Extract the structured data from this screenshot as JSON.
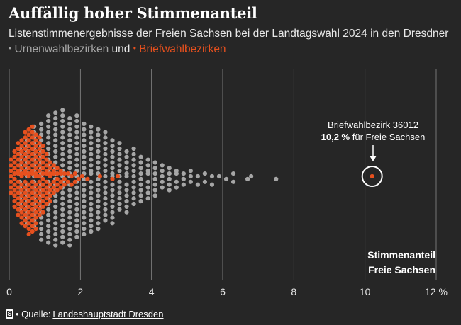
{
  "header": {
    "title": "Auffällig hoher Stimmenanteil",
    "subtitle_prefix": "Listenstimmenergebnisse der Freien Sachsen bei der Landtagswahl 2024 in den Dresdner",
    "legend_urnen": "Urnenwahlbezirken",
    "legend_und": "und",
    "legend_brief": "Briefwahlbezirken",
    "legend_bullet": "•"
  },
  "source": {
    "logo": "S",
    "label": "• Quelle:",
    "link_text": "Landeshauptstadt Dresden"
  },
  "colors": {
    "background": "#262626",
    "urnen": "#a6a6a6",
    "brief": "#e6501e",
    "grid": "#8a8a8a"
  },
  "chart_data": {
    "type": "beeswarm",
    "title": "Auffällig hoher Stimmenanteil",
    "xlabel": "Stimmenanteil Freie Sachsen",
    "xlabel_lines": [
      "Stimmenanteil",
      "Freie Sachsen"
    ],
    "xlim": [
      0,
      12
    ],
    "ticks": [
      {
        "value": 0,
        "label": "0"
      },
      {
        "value": 2,
        "label": "2"
      },
      {
        "value": 4,
        "label": "4"
      },
      {
        "value": 6,
        "label": "6"
      },
      {
        "value": 8,
        "label": "8"
      },
      {
        "value": 10,
        "label": "10"
      },
      {
        "value": 12,
        "label": "12 %"
      }
    ],
    "series": [
      {
        "name": "Urnenwahlbezirke",
        "color": "#a6a6a6",
        "column_step": 0.2,
        "columns": [
          {
            "x": 0.3,
            "n": 12
          },
          {
            "x": 0.5,
            "n": 16
          },
          {
            "x": 0.7,
            "n": 19
          },
          {
            "x": 0.9,
            "n": 22
          },
          {
            "x": 1.1,
            "n": 24
          },
          {
            "x": 1.3,
            "n": 25
          },
          {
            "x": 1.5,
            "n": 25
          },
          {
            "x": 1.7,
            "n": 24
          },
          {
            "x": 1.9,
            "n": 23
          },
          {
            "x": 2.1,
            "n": 21
          },
          {
            "x": 2.3,
            "n": 20
          },
          {
            "x": 2.5,
            "n": 19
          },
          {
            "x": 2.7,
            "n": 17
          },
          {
            "x": 2.9,
            "n": 16
          },
          {
            "x": 3.1,
            "n": 13
          },
          {
            "x": 3.3,
            "n": 12
          },
          {
            "x": 3.5,
            "n": 11
          },
          {
            "x": 3.7,
            "n": 9
          },
          {
            "x": 3.9,
            "n": 8
          },
          {
            "x": 4.1,
            "n": 7
          },
          {
            "x": 4.3,
            "n": 5
          },
          {
            "x": 4.5,
            "n": 5
          },
          {
            "x": 4.7,
            "n": 4
          },
          {
            "x": 4.9,
            "n": 3
          },
          {
            "x": 5.1,
            "n": 3
          },
          {
            "x": 5.3,
            "n": 2
          },
          {
            "x": 5.5,
            "n": 2
          },
          {
            "x": 5.7,
            "n": 2
          },
          {
            "x": 5.9,
            "n": 1
          },
          {
            "x": 6.1,
            "n": 1
          },
          {
            "x": 6.3,
            "n": 2
          },
          {
            "x": 6.7,
            "n": 1
          },
          {
            "x": 6.8,
            "n": 1
          },
          {
            "x": 7.5,
            "n": 1
          }
        ]
      },
      {
        "name": "Briefwahlbezirke",
        "color": "#e6501e",
        "column_step": 0.1,
        "columns": [
          {
            "x": 0.05,
            "n": 7
          },
          {
            "x": 0.15,
            "n": 11
          },
          {
            "x": 0.25,
            "n": 14
          },
          {
            "x": 0.35,
            "n": 16
          },
          {
            "x": 0.45,
            "n": 18
          },
          {
            "x": 0.55,
            "n": 20
          },
          {
            "x": 0.65,
            "n": 20
          },
          {
            "x": 0.75,
            "n": 18
          },
          {
            "x": 0.85,
            "n": 15
          },
          {
            "x": 0.95,
            "n": 13
          },
          {
            "x": 1.05,
            "n": 10
          },
          {
            "x": 1.15,
            "n": 8
          },
          {
            "x": 1.25,
            "n": 6
          },
          {
            "x": 1.35,
            "n": 5
          },
          {
            "x": 1.45,
            "n": 4
          },
          {
            "x": 1.55,
            "n": 3
          },
          {
            "x": 1.65,
            "n": 2
          },
          {
            "x": 1.75,
            "n": 2
          },
          {
            "x": 1.85,
            "n": 2
          },
          {
            "x": 1.95,
            "n": 1
          },
          {
            "x": 2.05,
            "n": 1
          },
          {
            "x": 2.2,
            "n": 1
          },
          {
            "x": 2.55,
            "n": 1
          },
          {
            "x": 2.9,
            "n": 1
          },
          {
            "x": 3.05,
            "n": 1
          }
        ],
        "highlight": {
          "x": 10.2,
          "n": 1
        }
      }
    ],
    "annotation": {
      "line1": "Briefwahlbezirk 36012",
      "line2_bold": "10,2 %",
      "line2_rest": "für Freie Sachsen",
      "value": 10.2
    }
  }
}
